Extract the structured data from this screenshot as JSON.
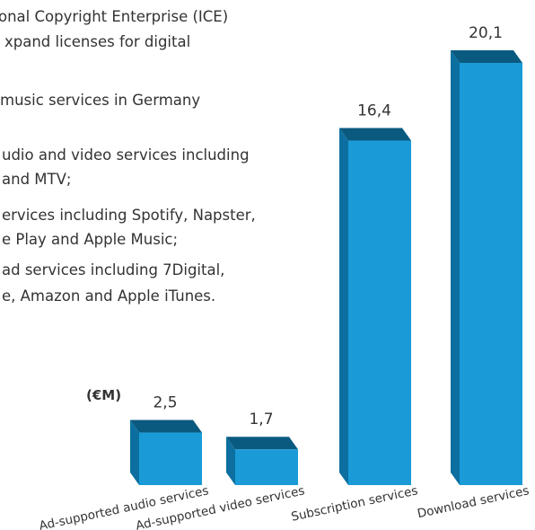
{
  "chart_data": {
    "type": "bar3d",
    "annotations": [
      "onal Copyright Enterprise (ICE)",
      "xpand licenses for digital",
      "music services in Germany",
      "udio and video services including",
      "and MTV;",
      "ervices including Spotify, Napster,",
      "e Play and Apple Music;",
      "ad services including 7Digital,",
      "e, Amazon and Apple iTunes."
    ],
    "unit": "(€M)",
    "categories": [
      "Ad-supported audio services",
      "Ad-supported video services",
      "Subscription services",
      "Download services"
    ],
    "values": [
      2.5,
      1.7,
      16.4,
      20.1
    ],
    "value_labels": [
      "2,5",
      "1,7",
      "16,4",
      "20,1"
    ],
    "color": "#1a9bd7"
  }
}
